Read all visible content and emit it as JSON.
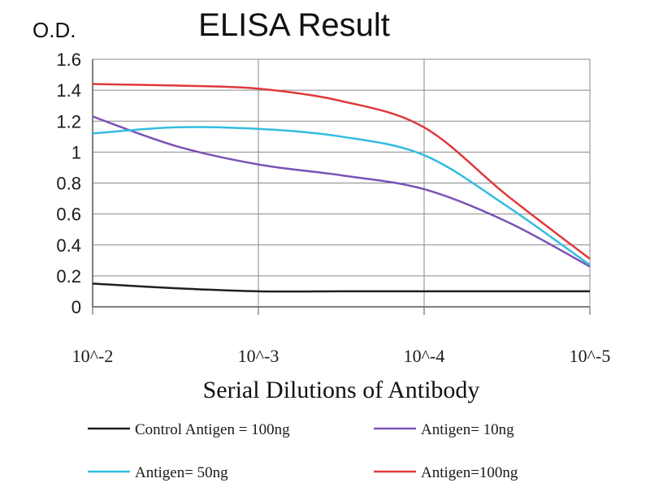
{
  "chart_data": {
    "type": "line",
    "title": "ELISA Result",
    "ylabel": "O.D.",
    "xlabel": "Serial Dilutions of Antibody",
    "categories": [
      "10^-2",
      "10^-3",
      "10^-4",
      "10^-5"
    ],
    "xlim": [
      0.01,
      1e-05
    ],
    "x_scale": "log",
    "ylim": [
      0,
      1.6
    ],
    "yticks": [
      "0",
      "0.2",
      "0.4",
      "0.6",
      "0.8",
      "1",
      "1.2",
      "1.4",
      "1.6"
    ],
    "grid": true,
    "legend_position": "bottom",
    "series": [
      {
        "name": "Control Antigen = 100ng",
        "color": "#1f1f1f",
        "points": [
          [
            0.01,
            0.15
          ],
          [
            0.00316,
            0.12
          ],
          [
            0.001,
            0.1
          ],
          [
            0.000316,
            0.1
          ],
          [
            0.0001,
            0.1
          ],
          [
            3.16e-05,
            0.1
          ],
          [
            1e-05,
            0.1
          ]
        ]
      },
      {
        "name": "Antigen= 10ng",
        "color": "#7b52b5",
        "points": [
          [
            0.01,
            1.23
          ],
          [
            0.00316,
            1.04
          ],
          [
            0.001,
            0.92
          ],
          [
            0.000316,
            0.85
          ],
          [
            0.0001,
            0.76
          ],
          [
            3.16e-05,
            0.55
          ],
          [
            1e-05,
            0.26
          ]
        ]
      },
      {
        "name": "Antigen= 50ng",
        "color": "#33bde0",
        "points": [
          [
            0.01,
            1.12
          ],
          [
            0.00316,
            1.16
          ],
          [
            0.001,
            1.15
          ],
          [
            0.000316,
            1.1
          ],
          [
            0.0001,
            0.98
          ],
          [
            3.16e-05,
            0.65
          ],
          [
            1e-05,
            0.27
          ]
        ]
      },
      {
        "name": "Antigen=100ng",
        "color": "#e0393b",
        "points": [
          [
            0.01,
            1.44
          ],
          [
            0.00316,
            1.43
          ],
          [
            0.001,
            1.41
          ],
          [
            0.000316,
            1.33
          ],
          [
            0.0001,
            1.16
          ],
          [
            3.16e-05,
            0.72
          ],
          [
            1e-05,
            0.31
          ]
        ]
      }
    ]
  }
}
